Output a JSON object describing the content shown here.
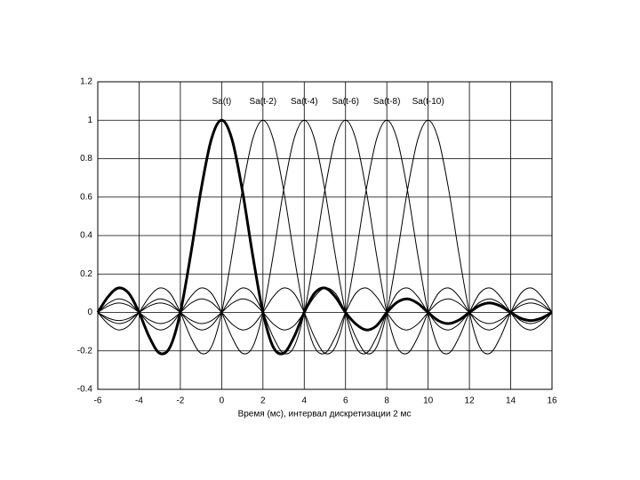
{
  "chart_data": {
    "type": "line",
    "xlabel": "Время (мс), интервал дискретизации 2 мс",
    "xlim": [
      -6,
      16
    ],
    "ylim": [
      -0.4,
      1.2
    ],
    "xticks": [
      -6,
      -4,
      -2,
      0,
      2,
      4,
      6,
      8,
      10,
      12,
      14,
      16
    ],
    "yticks": [
      -0.4,
      -0.2,
      0,
      0.2,
      0.4,
      0.6,
      0.8,
      1,
      1.2
    ],
    "grid": true,
    "x": [
      -6,
      -5.5,
      -5,
      -4.5,
      -4,
      -3.5,
      -3,
      -2.5,
      -2,
      -1.5,
      -1,
      -0.5,
      0,
      0.5,
      1,
      1.5,
      2,
      2.5,
      3,
      3.5,
      4,
      4.5,
      5,
      5.5,
      6,
      6.5,
      7,
      7.5,
      8,
      8.5,
      9,
      9.5,
      10,
      10.5,
      11,
      11.5,
      12,
      12.5,
      13,
      13.5,
      14,
      14.5,
      15,
      15.5,
      16
    ],
    "series": [
      {
        "name": "Sa(t)",
        "color": "#000000",
        "width": 3,
        "values": [
          0,
          0.0818,
          0.1273,
          0.1,
          0,
          -0.1286,
          -0.2122,
          -0.1801,
          0,
          0.3001,
          0.6366,
          0.9003,
          1,
          0.9003,
          0.6366,
          0.3001,
          0,
          -0.1801,
          -0.2122,
          -0.1286,
          0,
          0.1,
          0.1273,
          0.0818,
          0,
          -0.06,
          -0.0909,
          -0.0693,
          0,
          0.053,
          0.0707,
          0.0474,
          0,
          -0.0429,
          -0.0579,
          -0.0391,
          0,
          0.036,
          0.049,
          0.0333,
          0,
          -0.031,
          -0.0424,
          -0.029,
          0
        ]
      },
      {
        "name": "Sa(t-2)",
        "color": "#000000",
        "width": 1,
        "values": [
          0,
          -0.06,
          -0.0909,
          -0.0693,
          0,
          0.0818,
          0.1273,
          0.1,
          0,
          -0.1286,
          -0.2122,
          -0.1801,
          0,
          0.3001,
          0.6366,
          0.9003,
          1,
          0.9003,
          0.6366,
          0.3001,
          0,
          -0.1801,
          -0.2122,
          -0.1286,
          0,
          0.1,
          0.1273,
          0.0818,
          0,
          -0.0693,
          -0.0909,
          -0.06,
          0,
          0.053,
          0.0707,
          0.0474,
          0,
          -0.0429,
          -0.0579,
          -0.0391,
          0,
          0.036,
          0.049,
          0.0333,
          0
        ]
      },
      {
        "name": "Sa(t-4)",
        "color": "#000000",
        "width": 1,
        "values": [
          0,
          0.0474,
          0.0707,
          0.053,
          0,
          -0.06,
          -0.0909,
          -0.0693,
          0,
          0.0818,
          0.1273,
          0.1,
          0,
          -0.1286,
          -0.2122,
          -0.1801,
          0,
          0.3001,
          0.6366,
          0.9003,
          1,
          0.9003,
          0.6366,
          0.3001,
          0,
          -0.1801,
          -0.2122,
          -0.1286,
          0,
          0.1,
          0.1273,
          0.0818,
          0,
          -0.0693,
          -0.0909,
          -0.06,
          0,
          0.053,
          0.0707,
          0.0474,
          0,
          -0.0429,
          -0.0579,
          -0.0391,
          0
        ]
      },
      {
        "name": "Sa(t-6)",
        "color": "#000000",
        "width": 1,
        "values": [
          0,
          -0.0391,
          -0.0579,
          -0.0429,
          0,
          0.0474,
          0.0707,
          0.053,
          0,
          -0.06,
          -0.0909,
          -0.0693,
          0,
          0.0818,
          0.1273,
          0.1,
          0,
          -0.1286,
          -0.2122,
          -0.1801,
          0,
          0.3001,
          0.6366,
          0.9003,
          1,
          0.9003,
          0.6366,
          0.3001,
          0,
          -0.1801,
          -0.2122,
          -0.1286,
          0,
          0.1,
          0.1273,
          0.0818,
          0,
          -0.0693,
          -0.0909,
          -0.06,
          0,
          0.053,
          0.0707,
          0.0474,
          0
        ]
      },
      {
        "name": "Sa(t-8)",
        "color": "#000000",
        "width": 1,
        "values": [
          0,
          0.0333,
          0.049,
          0.036,
          0,
          -0.0391,
          -0.0579,
          -0.0429,
          0,
          0.0474,
          0.0707,
          0.053,
          0,
          -0.06,
          -0.0909,
          -0.0693,
          0,
          0.0818,
          0.1273,
          0.1,
          0,
          -0.1286,
          -0.2122,
          -0.1801,
          0,
          0.3001,
          0.6366,
          0.9003,
          1,
          0.9003,
          0.6366,
          0.3001,
          0,
          -0.1801,
          -0.2122,
          -0.1286,
          0,
          0.1,
          0.1273,
          0.0818,
          0,
          -0.0693,
          -0.0909,
          -0.06,
          0
        ]
      },
      {
        "name": "Sa(t-10)",
        "color": "#000000",
        "width": 1,
        "values": [
          0,
          -0.029,
          -0.0424,
          -0.031,
          0,
          0.0333,
          0.049,
          0.036,
          0,
          -0.0391,
          -0.0579,
          -0.0429,
          0,
          0.0474,
          0.0707,
          0.053,
          0,
          -0.06,
          -0.0909,
          -0.0693,
          0,
          0.0818,
          0.1273,
          0.1,
          0,
          -0.1286,
          -0.2122,
          -0.1801,
          0,
          0.3001,
          0.6366,
          0.9003,
          1,
          0.9003,
          0.6366,
          0.3001,
          0,
          -0.1801,
          -0.2122,
          -0.1286,
          0,
          0.1,
          0.1273,
          0.0818,
          0
        ]
      }
    ]
  }
}
